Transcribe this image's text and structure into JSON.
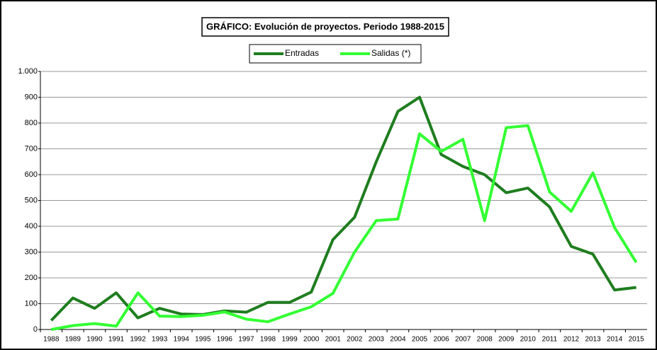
{
  "chart_data": {
    "type": "line",
    "title": "GRÁFICO: Evolución de proyectos. Periodo 1988-2015",
    "categories": [
      "1988",
      "1989",
      "1990",
      "1991",
      "1992",
      "1993",
      "1994",
      "1995",
      "1996",
      "1997",
      "1998",
      "1999",
      "2000",
      "2001",
      "2002",
      "2003",
      "2004",
      "2005",
      "2006",
      "2007",
      "2008",
      "2009",
      "2010",
      "2011",
      "2012",
      "2013",
      "2014",
      "2015"
    ],
    "series": [
      {
        "name": "Entradas",
        "color": "#1e7d1e",
        "values": [
          35,
          122,
          82,
          142,
          45,
          82,
          60,
          58,
          72,
          67,
          105,
          105,
          145,
          348,
          435,
          650,
          845,
          900,
          678,
          632,
          600,
          530,
          548,
          475,
          322,
          292,
          153,
          163
        ]
      },
      {
        "name": "Salidas (*)",
        "color": "#33ff33",
        "values": [
          0,
          15,
          23,
          13,
          142,
          52,
          50,
          55,
          68,
          40,
          30,
          60,
          88,
          140,
          300,
          422,
          428,
          758,
          690,
          737,
          422,
          782,
          790,
          533,
          458,
          607,
          395,
          260
        ]
      }
    ],
    "ylim": [
      0,
      1000
    ],
    "yticks": [
      0,
      100,
      200,
      300,
      400,
      500,
      600,
      700,
      800,
      900,
      {
        "value": 1000,
        "label": "1.000"
      }
    ],
    "grid": true,
    "legend": "top"
  }
}
